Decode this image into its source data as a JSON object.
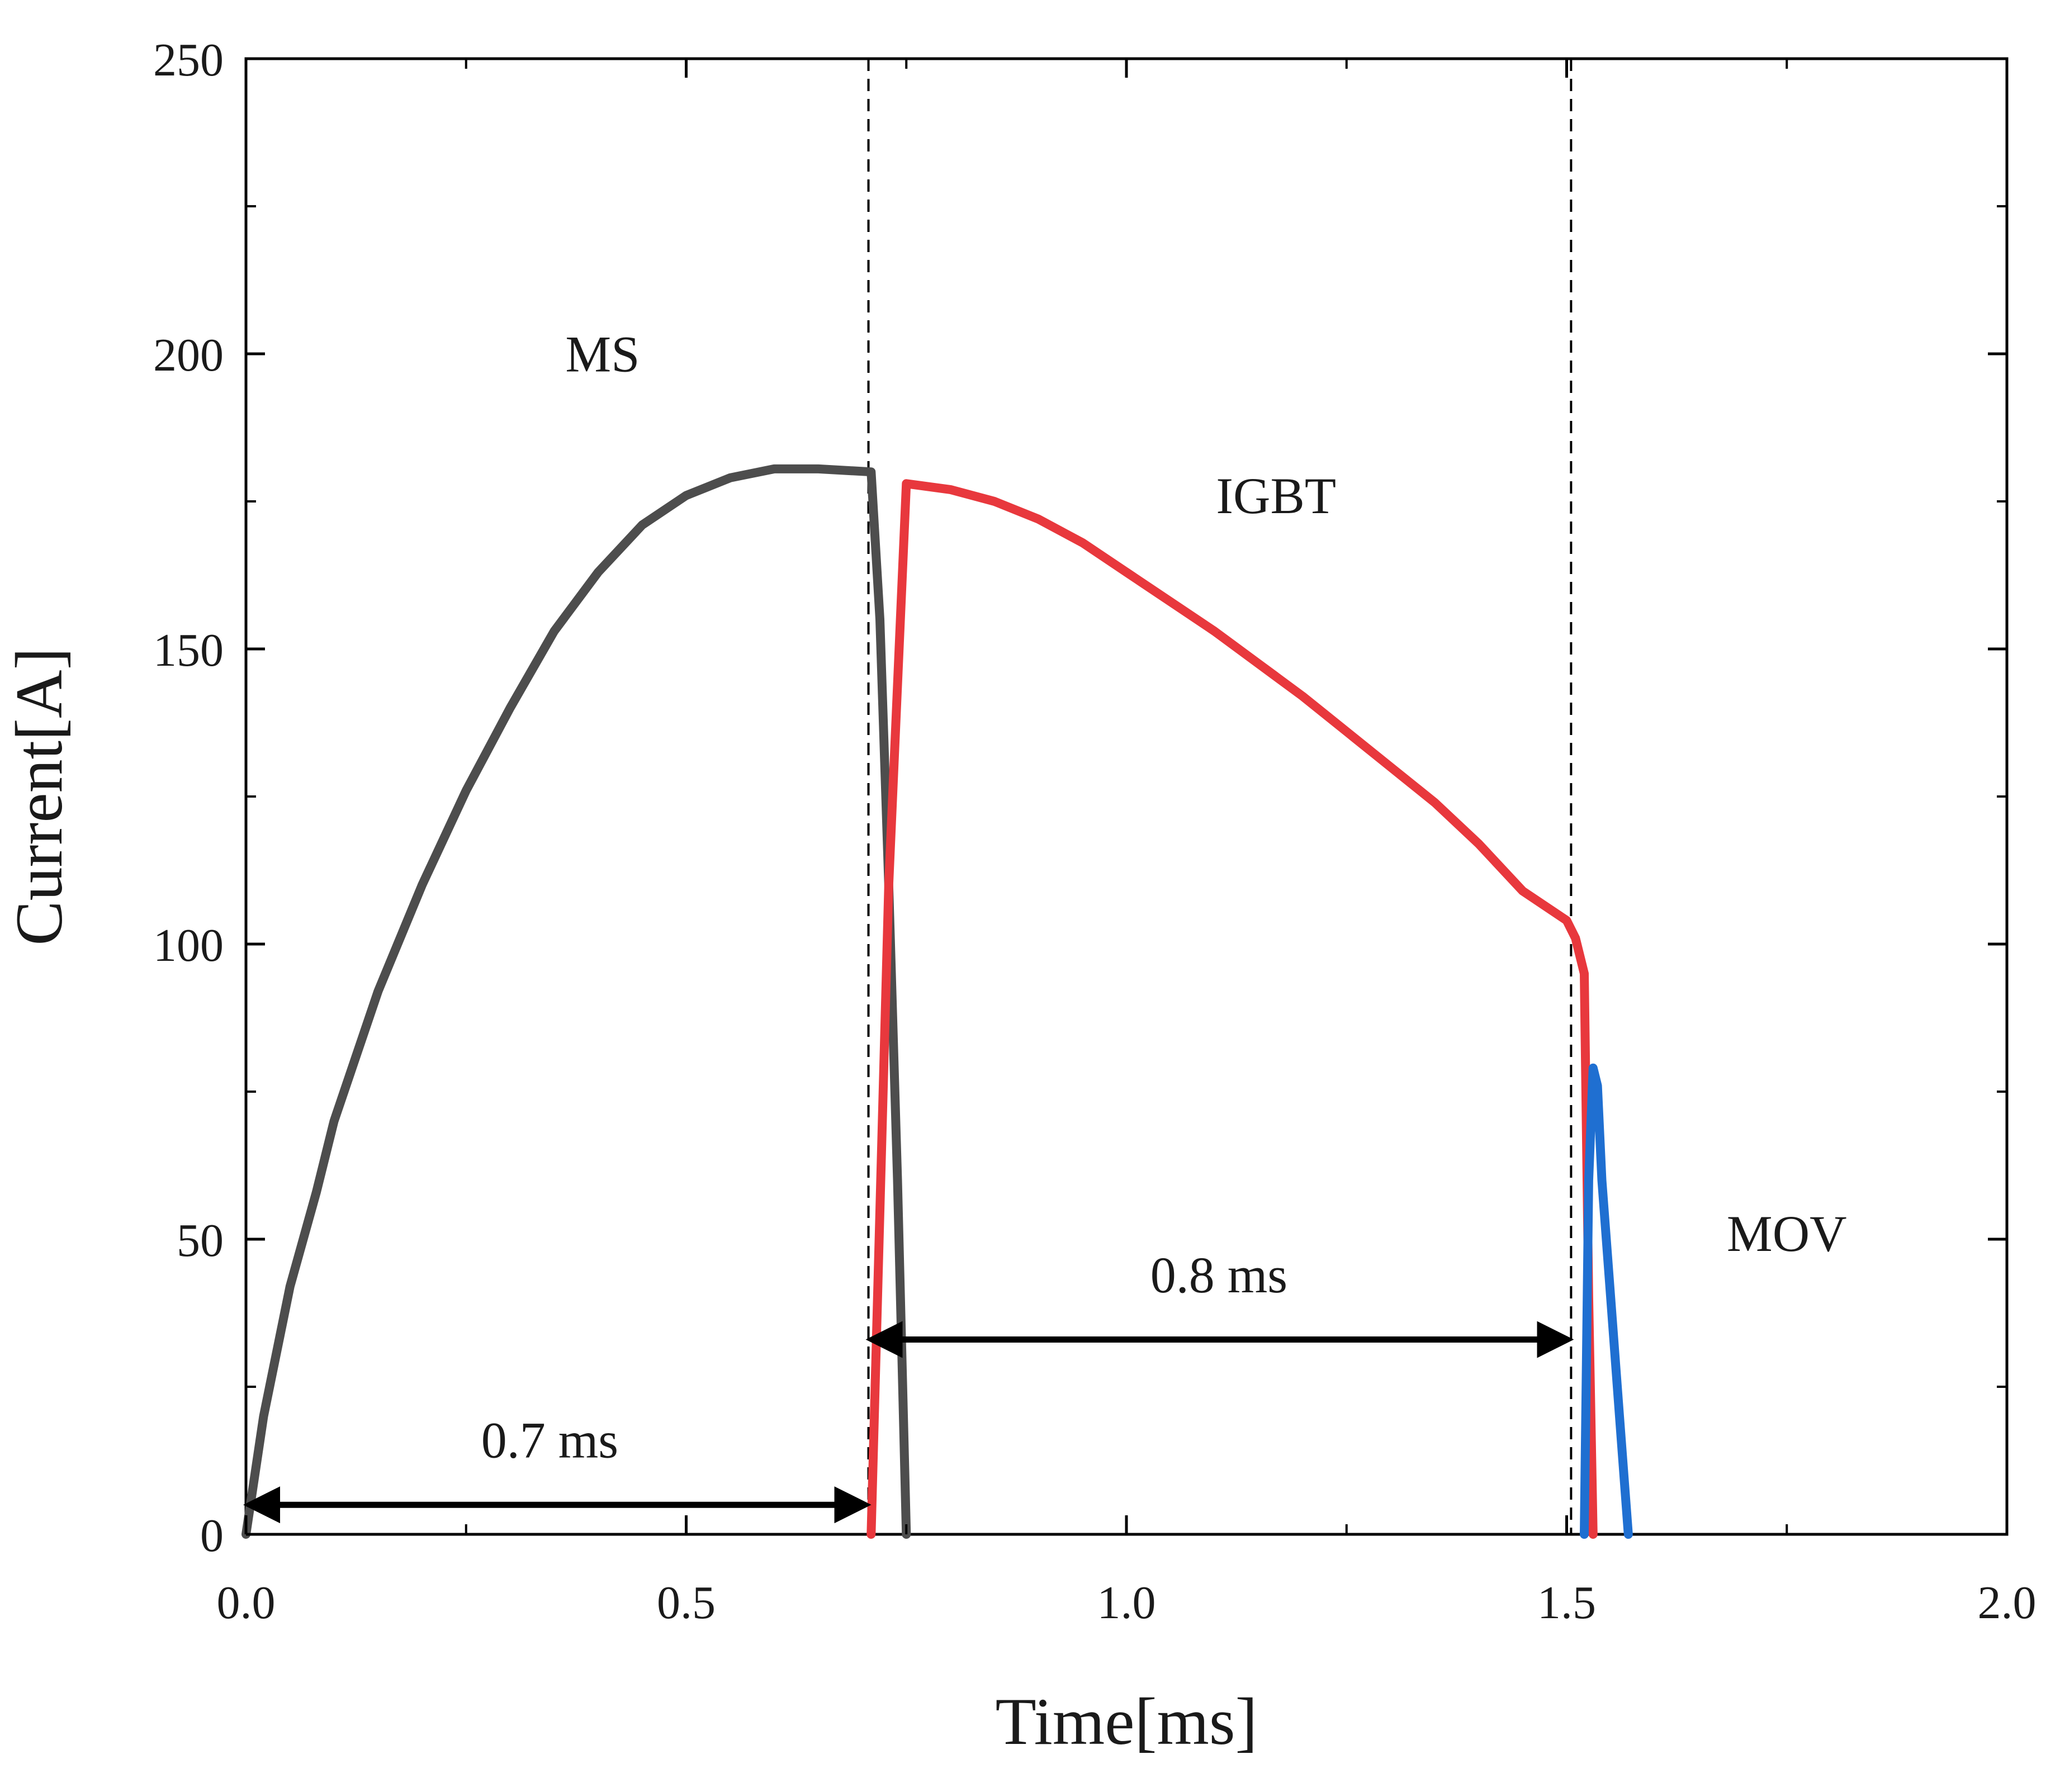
{
  "chart_data": {
    "type": "line",
    "title": "",
    "xlabel": "Time[ms]",
    "ylabel": "Current[A]",
    "xlim": [
      0.0,
      2.0
    ],
    "ylim": [
      0,
      250
    ],
    "x_ticks": [
      "0.0",
      "0.5",
      "1.0",
      "1.5",
      "2.0"
    ],
    "y_ticks": [
      "0",
      "50",
      "100",
      "150",
      "200",
      "250"
    ],
    "grid": false,
    "series": [
      {
        "name": "MS",
        "color": "#4d4d4d",
        "points": [
          [
            0.0,
            0
          ],
          [
            0.02,
            20
          ],
          [
            0.05,
            42
          ],
          [
            0.08,
            58
          ],
          [
            0.1,
            70
          ],
          [
            0.15,
            92
          ],
          [
            0.2,
            110
          ],
          [
            0.25,
            126
          ],
          [
            0.3,
            140
          ],
          [
            0.35,
            153
          ],
          [
            0.4,
            163
          ],
          [
            0.45,
            171
          ],
          [
            0.5,
            176
          ],
          [
            0.55,
            179
          ],
          [
            0.6,
            180.5
          ],
          [
            0.65,
            180.5
          ],
          [
            0.71,
            180
          ],
          [
            0.72,
            155
          ],
          [
            0.73,
            110
          ],
          [
            0.74,
            60
          ],
          [
            0.75,
            0
          ]
        ]
      },
      {
        "name": "IGBT",
        "color": "#e8383d",
        "points": [
          [
            0.71,
            0
          ],
          [
            0.73,
            110
          ],
          [
            0.75,
            178
          ],
          [
            0.8,
            177
          ],
          [
            0.85,
            175
          ],
          [
            0.9,
            172
          ],
          [
            0.95,
            168
          ],
          [
            1.0,
            163
          ],
          [
            1.05,
            158
          ],
          [
            1.1,
            153
          ],
          [
            1.15,
            147.5
          ],
          [
            1.2,
            142
          ],
          [
            1.25,
            136
          ],
          [
            1.3,
            130
          ],
          [
            1.35,
            124
          ],
          [
            1.4,
            117
          ],
          [
            1.45,
            109
          ],
          [
            1.5,
            104
          ],
          [
            1.51,
            101
          ],
          [
            1.52,
            95
          ],
          [
            1.525,
            40
          ],
          [
            1.53,
            0
          ]
        ]
      },
      {
        "name": "MOV",
        "color": "#1f6fd1",
        "points": [
          [
            1.52,
            0
          ],
          [
            1.525,
            60
          ],
          [
            1.53,
            79
          ],
          [
            1.535,
            76
          ],
          [
            1.54,
            60
          ],
          [
            1.55,
            40
          ],
          [
            1.56,
            20
          ],
          [
            1.57,
            0
          ]
        ]
      }
    ],
    "vertical_lines": [
      0.707,
      1.505
    ],
    "annotations": [
      {
        "text": "MS",
        "x": 0.405,
        "y": 197
      },
      {
        "text": "IGBT",
        "x": 1.17,
        "y": 173
      },
      {
        "text": "MOV",
        "x": 1.75,
        "y": 48
      },
      {
        "text": "0.7 ms",
        "x": 0.345,
        "y": 13
      },
      {
        "text": "0.8 ms",
        "x": 1.105,
        "y": 41
      }
    ],
    "spans": [
      {
        "label": "0.7 ms",
        "x_start": 0.0,
        "x_end": 0.707,
        "y": 5
      },
      {
        "label": "0.8 ms",
        "x_start": 0.707,
        "x_end": 1.505,
        "y": 33
      }
    ]
  }
}
